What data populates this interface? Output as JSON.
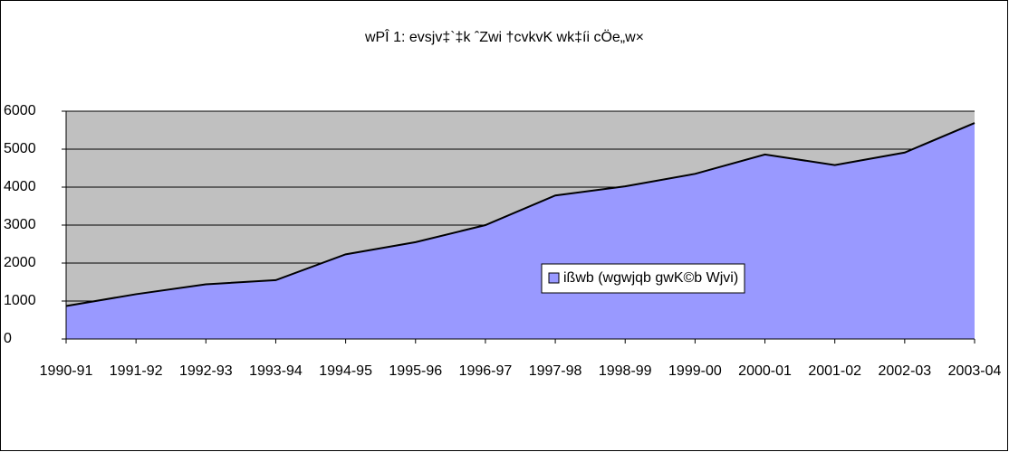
{
  "chart_data": {
    "type": "area",
    "title": "wPÎ 1: evsjv‡`‡k ˆZwi †cvkvK wk‡íi cÖe„w×",
    "categories": [
      "1990-91",
      "1991-92",
      "1992-93",
      "1993-94",
      "1994-95",
      "1995-96",
      "1996-97",
      "1997-98",
      "1998-99",
      "1999-00",
      "2000-01",
      "2001-02",
      "2002-03",
      "2003-04"
    ],
    "series": [
      {
        "name": "ißwb (wgwjqb gwK©b Wjvi)",
        "color": "#9999ff",
        "values": [
          870,
          1180,
          1440,
          1550,
          2230,
          2550,
          3000,
          3780,
          4020,
          4350,
          4860,
          4580,
          4910,
          5690
        ]
      }
    ],
    "ylim": [
      0,
      6000
    ],
    "yticks": [
      0,
      1000,
      2000,
      3000,
      4000,
      5000,
      6000
    ],
    "grid": true,
    "plot_background": "#c0c0c0"
  }
}
